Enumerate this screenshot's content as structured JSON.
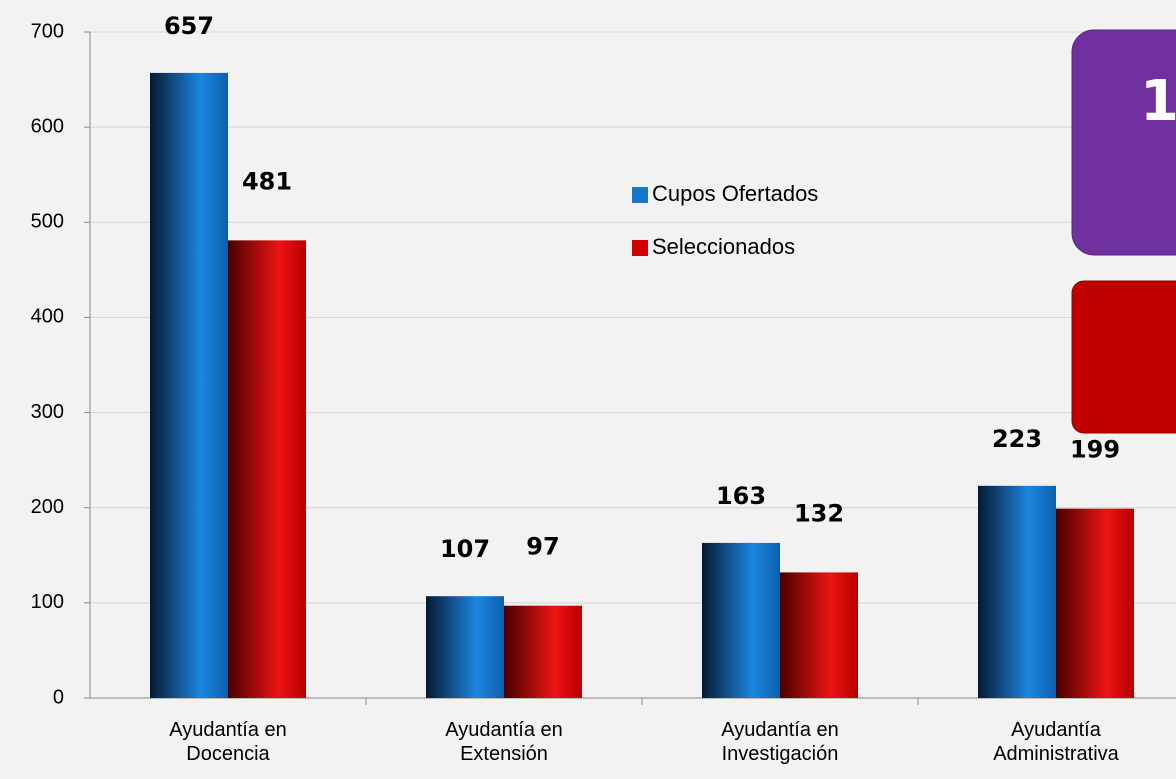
{
  "chart_data": {
    "type": "bar",
    "categories": [
      "Ayudantía en Docencia",
      "Ayudantía en Extensión",
      "Ayudantía en Investigación",
      "Ayudantía Administrativa"
    ],
    "series": [
      {
        "name": "Cupos Ofertados",
        "color": "#1577cc",
        "values": [
          657,
          107,
          163,
          223
        ]
      },
      {
        "name": "Seleccionados",
        "color": "#d10000",
        "values": [
          481,
          97,
          132,
          199
        ]
      }
    ],
    "ylim": [
      0,
      700
    ],
    "yticks": [
      0,
      100,
      200,
      300,
      400,
      500,
      600,
      700
    ],
    "grid": true,
    "callouts": [
      "1"
    ]
  }
}
